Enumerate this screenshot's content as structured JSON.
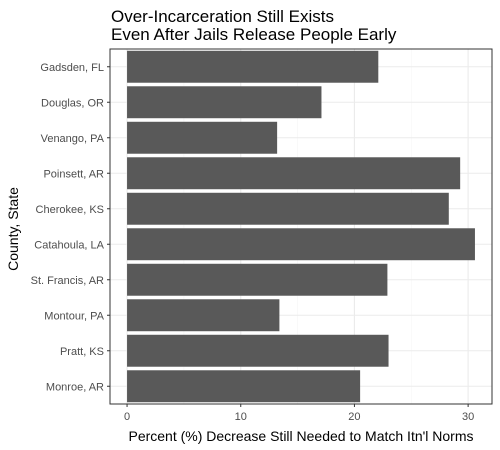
{
  "chart_data": {
    "type": "bar",
    "orientation": "horizontal",
    "title_lines": [
      "Over-Incarceration Still Exists",
      "Even After Jails Release People Early"
    ],
    "xlabel": "Percent (%) Decrease Still Needed to Match Itn'l Norms",
    "ylabel": "County, State",
    "categories": [
      "Gadsden, FL",
      "Douglas, OR",
      "Venango, PA",
      "Poinsett, AR",
      "Cherokee, KS",
      "Catahoula, LA",
      "St. Francis, AR",
      "Montour, PA",
      "Pratt, KS",
      "Monroe, AR"
    ],
    "values": [
      22.1,
      17.1,
      13.2,
      29.3,
      28.3,
      30.6,
      22.9,
      13.4,
      23.0,
      20.5
    ],
    "xlim": [
      -1.5,
      32.1
    ],
    "xticks": [
      "0",
      "10",
      "20",
      "30"
    ],
    "grid": true,
    "legend": "none",
    "colors": {
      "bar": "#595959",
      "panel_border": "#333333",
      "grid_major": "#ebebeb",
      "grid_minor": "#f5f5f5",
      "text": "#000000",
      "tick_text": "#4d4d4d"
    }
  }
}
